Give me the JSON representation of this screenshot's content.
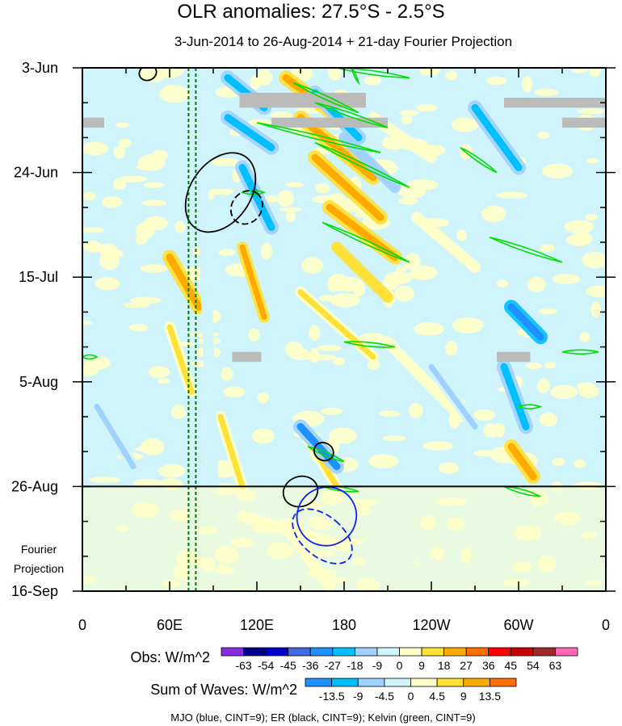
{
  "chart_data": {
    "type": "heatmap",
    "title": "OLR anomalies: 27.5°S - 2.5°S",
    "subtitle": "3-Jun-2014 to 26-Aug-2014 + 21-day Fourier Projection",
    "x_ticks": [
      {
        "lon": 0,
        "label": "0"
      },
      {
        "lon": 60,
        "label": "60E"
      },
      {
        "lon": 120,
        "label": "120E"
      },
      {
        "lon": 180,
        "label": "180"
      },
      {
        "lon": 240,
        "label": "120W"
      },
      {
        "lon": 300,
        "label": "60W"
      },
      {
        "lon": 360,
        "label": "0"
      }
    ],
    "y_ticks": [
      {
        "day": 0,
        "label": "3-Jun"
      },
      {
        "day": 21,
        "label": "24-Jun"
      },
      {
        "day": 42,
        "label": "15-Jul"
      },
      {
        "day": 63,
        "label": "5-Aug"
      },
      {
        "day": 84,
        "label": "26-Aug"
      },
      {
        "day": 105,
        "label": "16-Sep"
      }
    ],
    "xlim": [
      0,
      360
    ],
    "ylim_days": [
      0,
      105
    ],
    "obs_end_day": 84,
    "projection_label": [
      "Fourier",
      "Projection"
    ],
    "dashed_lons": [
      73,
      78
    ],
    "background_color": "#d0f4fc",
    "obs_colorbar": {
      "label": "Obs: W/m^2",
      "levels": [
        "-63",
        "-54",
        "-45",
        "-36",
        "-27",
        "-18",
        "-9",
        "0",
        "9",
        "18",
        "27",
        "36",
        "45",
        "54",
        "63"
      ],
      "colors": [
        "#8a2be2",
        "#00008b",
        "#0000cd",
        "#4169e1",
        "#1e90ff",
        "#00bfff",
        "#a0d2ff",
        "#d0f4fc",
        "#ffffc8",
        "#ffe135",
        "#ffaa00",
        "#ff6e00",
        "#ff0000",
        "#c80000",
        "#a02828",
        "#ff69b4"
      ]
    },
    "waves_colorbar": {
      "label": "Sum of Waves: W/m^2",
      "levels": [
        "-13.5",
        "-9",
        "-4.5",
        "0",
        "4.5",
        "9",
        "13.5"
      ],
      "colors": [
        "#1e90ff",
        "#00bfff",
        "#a0d2ff",
        "#d0f4fc",
        "#ffffc8",
        "#ffe135",
        "#ffaa00",
        "#ff6e00"
      ]
    },
    "footnote": "MJO (blue, CINT=9); ER (black, CINT=9); Kelvin (green, CINT=9)",
    "anomaly_streaks": [
      {
        "lon1": 140,
        "d1": 2,
        "lon2": 185,
        "d2": 12,
        "value": 20
      },
      {
        "lon1": 150,
        "d1": 10,
        "lon2": 200,
        "d2": 22,
        "value": 25
      },
      {
        "lon1": 160,
        "d1": 18,
        "lon2": 205,
        "d2": 30,
        "value": 22
      },
      {
        "lon1": 170,
        "d1": 28,
        "lon2": 215,
        "d2": 38,
        "value": 20
      },
      {
        "lon1": 175,
        "d1": 36,
        "lon2": 210,
        "d2": 46,
        "value": 15
      },
      {
        "lon1": 110,
        "d1": 36,
        "lon2": 125,
        "d2": 50,
        "value": 18
      },
      {
        "lon1": 60,
        "d1": 38,
        "lon2": 80,
        "d2": 48,
        "value": 20
      },
      {
        "lon1": 150,
        "d1": 45,
        "lon2": 200,
        "d2": 58,
        "value": 12
      },
      {
        "lon1": 95,
        "d1": 70,
        "lon2": 110,
        "d2": 84,
        "value": 14
      },
      {
        "lon1": 150,
        "d1": 72,
        "lon2": 175,
        "d2": 84,
        "value": 14
      },
      {
        "lon1": 295,
        "d1": 76,
        "lon2": 310,
        "d2": 82,
        "value": 22
      },
      {
        "lon1": 200,
        "d1": 10,
        "lon2": 240,
        "d2": 18,
        "value": 8
      },
      {
        "lon1": 230,
        "d1": 30,
        "lon2": 270,
        "d2": 40,
        "value": 6
      },
      {
        "lon1": 140,
        "d1": 92,
        "lon2": 170,
        "d2": 104,
        "value": 8
      },
      {
        "lon1": 60,
        "d1": 52,
        "lon2": 75,
        "d2": 65,
        "value": 10
      },
      {
        "lon1": 210,
        "d1": 55,
        "lon2": 260,
        "d2": 70,
        "value": 6
      },
      {
        "lon1": 110,
        "d1": 90,
        "lon2": 180,
        "d2": 96,
        "value": 4
      },
      {
        "lon1": 100,
        "d1": 2,
        "lon2": 125,
        "d2": 8,
        "value": -25
      },
      {
        "lon1": 100,
        "d1": 10,
        "lon2": 130,
        "d2": 16,
        "value": -22
      },
      {
        "lon1": 110,
        "d1": 20,
        "lon2": 130,
        "d2": 32,
        "value": -20
      },
      {
        "lon1": 160,
        "d1": 5,
        "lon2": 190,
        "d2": 14,
        "value": -20
      },
      {
        "lon1": 180,
        "d1": 14,
        "lon2": 215,
        "d2": 24,
        "value": -18
      },
      {
        "lon1": 270,
        "d1": 8,
        "lon2": 300,
        "d2": 20,
        "value": -25
      },
      {
        "lon1": 295,
        "d1": 48,
        "lon2": 315,
        "d2": 54,
        "value": -35
      },
      {
        "lon1": 150,
        "d1": 72,
        "lon2": 175,
        "d2": 80,
        "value": -30
      },
      {
        "lon1": 290,
        "d1": 60,
        "lon2": 305,
        "d2": 72,
        "value": -22
      },
      {
        "lon1": 10,
        "d1": 68,
        "lon2": 35,
        "d2": 80,
        "value": -12
      },
      {
        "lon1": 170,
        "d1": 90,
        "lon2": 260,
        "d2": 102,
        "value": -3
      },
      {
        "lon1": 240,
        "d1": 60,
        "lon2": 270,
        "d2": 72,
        "value": -12
      },
      {
        "lon1": 80,
        "d1": 0,
        "lon2": 90,
        "d2": 84,
        "value": -8
      }
    ],
    "missing_boxes": [
      {
        "lon1": 0,
        "lon2": 15,
        "d1": 10,
        "d2": 12
      },
      {
        "lon1": 108,
        "lon2": 195,
        "d1": 5,
        "d2": 8
      },
      {
        "lon1": 130,
        "lon2": 210,
        "d1": 10,
        "d2": 12
      },
      {
        "lon1": 290,
        "lon2": 360,
        "d1": 6,
        "d2": 8
      },
      {
        "lon1": 330,
        "lon2": 360,
        "d1": 10,
        "d2": 12
      },
      {
        "lon1": 103,
        "lon2": 123,
        "d1": 57,
        "d2": 59
      },
      {
        "lon1": 285,
        "lon2": 308,
        "d1": 57,
        "d2": 59
      }
    ],
    "mjo_contours": [
      {
        "lon": 165,
        "day": 94,
        "rlon": 14,
        "rday": 7,
        "angle": -50,
        "dashed": true
      },
      {
        "lon": 168,
        "day": 90,
        "rlon": 20,
        "rday": 6,
        "angle": 60,
        "dashed": false
      }
    ],
    "er_contours": [
      {
        "lon": 95,
        "day": 25,
        "rlon": 30,
        "rday": 6,
        "angle": -55,
        "dashed": false
      },
      {
        "lon": 113,
        "day": 28,
        "rlon": 12,
        "rday": 3,
        "angle": -55,
        "dashed": true
      },
      {
        "lon": 166,
        "day": 77,
        "rlon": 6,
        "rday": 2,
        "angle": -60,
        "dashed": false
      },
      {
        "lon": 150,
        "day": 85,
        "rlon": 12,
        "rday": 3,
        "angle": -20,
        "dashed": false
      },
      {
        "lon": 45,
        "day": 1,
        "rlon": 6,
        "rday": 1.5,
        "angle": -20,
        "dashed": false
      }
    ],
    "kelvin_contours": [
      {
        "lon1": 175,
        "d1": 0,
        "lon2": 225,
        "d2": 2
      },
      {
        "lon1": 145,
        "d1": 3,
        "lon2": 190,
        "d2": 9
      },
      {
        "lon1": 160,
        "d1": 7,
        "lon2": 210,
        "d2": 12
      },
      {
        "lon1": 120,
        "d1": 11,
        "lon2": 205,
        "d2": 17
      },
      {
        "lon1": 160,
        "d1": 15,
        "lon2": 225,
        "d2": 24
      },
      {
        "lon1": 260,
        "d1": 16,
        "lon2": 285,
        "d2": 21
      },
      {
        "lon1": 165,
        "d1": 31,
        "lon2": 225,
        "d2": 39
      },
      {
        "lon1": 280,
        "d1": 34,
        "lon2": 330,
        "d2": 39
      },
      {
        "lon1": 110,
        "d1": 25,
        "lon2": 125,
        "d2": 25
      },
      {
        "lon1": 180,
        "d1": 55,
        "lon2": 215,
        "d2": 56
      },
      {
        "lon1": 330,
        "d1": 57,
        "lon2": 355,
        "d2": 57
      },
      {
        "lon1": 0,
        "d1": 58,
        "lon2": 10,
        "d2": 58
      },
      {
        "lon1": 155,
        "d1": 76,
        "lon2": 180,
        "d2": 79
      },
      {
        "lon1": 165,
        "d1": 84,
        "lon2": 190,
        "d2": 85
      },
      {
        "lon1": 290,
        "d1": 84,
        "lon2": 315,
        "d2": 86
      },
      {
        "lon1": 300,
        "d1": 68,
        "lon2": 315,
        "d2": 68
      },
      {
        "lon1": 185,
        "d1": 0,
        "lon2": 190,
        "d2": 3
      }
    ]
  }
}
